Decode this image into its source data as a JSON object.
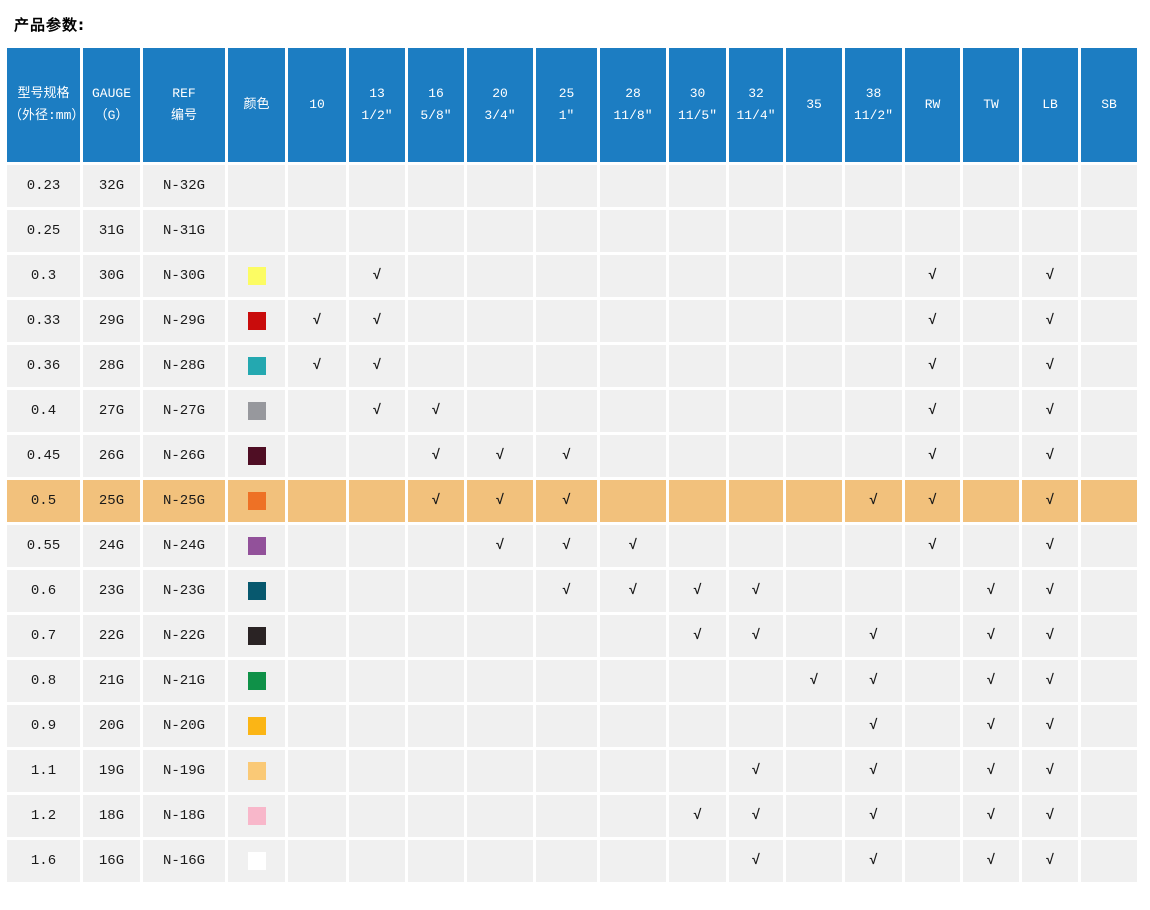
{
  "page": {
    "title": "产品参数:"
  },
  "colors": {
    "header_bg": "#1C7DC2",
    "header_text": "#FFFFFF",
    "cell_bg": "#F0F0F0",
    "highlight_bg": "#F2C17C",
    "check_color": "#2B2B2B",
    "text_color": "#1A1A1A"
  },
  "table": {
    "check_glyph": "√",
    "columns": [
      {
        "id": "spec",
        "lines": [
          "型号规格",
          "（外径:mm）"
        ]
      },
      {
        "id": "gauge",
        "lines": [
          "GAUGE",
          "（G）"
        ]
      },
      {
        "id": "ref",
        "lines": [
          "REF",
          "编号"
        ]
      },
      {
        "id": "color",
        "lines": [
          "颜色"
        ]
      },
      {
        "id": "s10",
        "lines": [
          "10"
        ]
      },
      {
        "id": "s13",
        "lines": [
          "13",
          "1/2″"
        ]
      },
      {
        "id": "s16",
        "lines": [
          "16",
          "5/8″"
        ]
      },
      {
        "id": "s20",
        "lines": [
          "20",
          "3/4″"
        ]
      },
      {
        "id": "s25",
        "lines": [
          "25",
          "1″"
        ]
      },
      {
        "id": "s28",
        "lines": [
          "28",
          "11/8″"
        ]
      },
      {
        "id": "s30",
        "lines": [
          "30",
          "11/5″"
        ]
      },
      {
        "id": "s32",
        "lines": [
          "32",
          "11/4″"
        ]
      },
      {
        "id": "s35",
        "lines": [
          "35"
        ]
      },
      {
        "id": "s38",
        "lines": [
          "38",
          "11/2″"
        ]
      },
      {
        "id": "RW",
        "lines": [
          "RW"
        ]
      },
      {
        "id": "TW",
        "lines": [
          "TW"
        ]
      },
      {
        "id": "LB",
        "lines": [
          "LB"
        ]
      },
      {
        "id": "SB",
        "lines": [
          "SB"
        ]
      }
    ],
    "rows": [
      {
        "spec": "0.23",
        "gauge": "32G",
        "ref": "N-32G",
        "color": null,
        "highlight": false,
        "checks": []
      },
      {
        "spec": "0.25",
        "gauge": "31G",
        "ref": "N-31G",
        "color": null,
        "highlight": false,
        "checks": []
      },
      {
        "spec": "0.3",
        "gauge": "30G",
        "ref": "N-30G",
        "color": "#FCFC63",
        "highlight": false,
        "checks": [
          "s13",
          "RW",
          "LB"
        ]
      },
      {
        "spec": "0.33",
        "gauge": "29G",
        "ref": "N-29G",
        "color": "#C90C0C",
        "highlight": false,
        "checks": [
          "s10",
          "s13",
          "RW",
          "LB"
        ]
      },
      {
        "spec": "0.36",
        "gauge": "28G",
        "ref": "N-28G",
        "color": "#24A8B0",
        "highlight": false,
        "checks": [
          "s10",
          "s13",
          "RW",
          "LB"
        ]
      },
      {
        "spec": "0.4",
        "gauge": "27G",
        "ref": "N-27G",
        "color": "#97989D",
        "highlight": false,
        "checks": [
          "s13",
          "s16",
          "RW",
          "LB"
        ]
      },
      {
        "spec": "0.45",
        "gauge": "26G",
        "ref": "N-26G",
        "color": "#4F0E24",
        "highlight": false,
        "checks": [
          "s16",
          "s20",
          "s25",
          "RW",
          "LB"
        ]
      },
      {
        "spec": "0.5",
        "gauge": "25G",
        "ref": "N-25G",
        "color": "#EE7125",
        "highlight": true,
        "checks": [
          "s16",
          "s20",
          "s25",
          "s38",
          "RW",
          "LB"
        ]
      },
      {
        "spec": "0.55",
        "gauge": "24G",
        "ref": "N-24G",
        "color": "#92519A",
        "highlight": false,
        "checks": [
          "s20",
          "s25",
          "s28",
          "RW",
          "LB"
        ]
      },
      {
        "spec": "0.6",
        "gauge": "23G",
        "ref": "N-23G",
        "color": "#07586E",
        "highlight": false,
        "checks": [
          "s25",
          "s28",
          "s30",
          "s32",
          "TW",
          "LB"
        ]
      },
      {
        "spec": "0.7",
        "gauge": "22G",
        "ref": "N-22G",
        "color": "#2A2324",
        "highlight": false,
        "checks": [
          "s30",
          "s32",
          "s38",
          "TW",
          "LB"
        ]
      },
      {
        "spec": "0.8",
        "gauge": "21G",
        "ref": "N-21G",
        "color": "#0F9148",
        "highlight": false,
        "checks": [
          "s35",
          "s38",
          "TW",
          "LB"
        ]
      },
      {
        "spec": "0.9",
        "gauge": "20G",
        "ref": "N-20G",
        "color": "#FBB515",
        "highlight": false,
        "checks": [
          "s38",
          "TW",
          "LB"
        ]
      },
      {
        "spec": "1.1",
        "gauge": "19G",
        "ref": "N-19G",
        "color": "#FAC976",
        "highlight": false,
        "checks": [
          "s32",
          "s38",
          "TW",
          "LB"
        ]
      },
      {
        "spec": "1.2",
        "gauge": "18G",
        "ref": "N-18G",
        "color": "#F8B7CA",
        "highlight": false,
        "checks": [
          "s30",
          "s32",
          "s38",
          "TW",
          "LB"
        ]
      },
      {
        "spec": "1.6",
        "gauge": "16G",
        "ref": "N-16G",
        "color": "#FFFFFF",
        "highlight": false,
        "checks": [
          "s32",
          "s38",
          "TW",
          "LB"
        ]
      }
    ]
  }
}
